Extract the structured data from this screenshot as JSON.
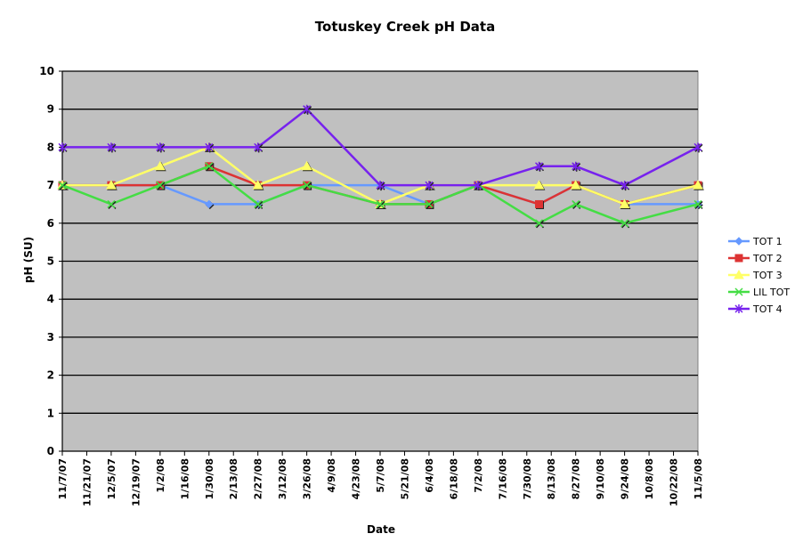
{
  "chart_data": {
    "type": "line",
    "title": "Totuskey Creek pH Data",
    "xlabel": "Date",
    "ylabel": "pH (SU)",
    "ylim": [
      0,
      10
    ],
    "yticks": [
      0,
      1,
      2,
      3,
      4,
      5,
      6,
      7,
      8,
      9,
      10
    ],
    "grid": "horizontal",
    "plot_background": "#c0c0c0",
    "legend_position": "right",
    "x_tick_labels": [
      "11/7/07",
      "11/21/07",
      "12/5/07",
      "12/19/07",
      "1/2/08",
      "1/16/08",
      "1/30/08",
      "2/13/08",
      "2/27/08",
      "3/12/08",
      "3/26/08",
      "4/9/08",
      "4/23/08",
      "5/7/08",
      "5/21/08",
      "6/4/08",
      "6/18/08",
      "7/2/08",
      "7/16/08",
      "7/30/08",
      "8/13/08",
      "8/27/08",
      "9/10/08",
      "9/24/08",
      "10/8/08",
      "10/22/08",
      "11/5/08"
    ],
    "x_dates": [
      "11/7/07",
      "12/5/07",
      "1/2/08",
      "1/30/08",
      "2/27/08",
      "3/26/08",
      "5/7/08",
      "6/4/08",
      "7/2/08",
      "8/6/08",
      "8/27/08",
      "9/24/08",
      "11/5/08"
    ],
    "series": [
      {
        "name": "TOT 1",
        "color": "#6699ff",
        "marker": "diamond",
        "values": [
          7,
          7,
          7,
          6.5,
          6.5,
          7,
          7,
          6.5,
          7,
          6.5,
          7,
          6.5,
          6.5
        ]
      },
      {
        "name": "TOT 2",
        "color": "#dd3333",
        "marker": "square",
        "values": [
          7,
          7,
          7,
          7.5,
          7,
          7,
          6.5,
          6.5,
          7,
          6.5,
          7,
          6.5,
          7
        ]
      },
      {
        "name": "TOT 3",
        "color": "#ffff66",
        "marker": "triangle",
        "values": [
          7,
          7,
          7.5,
          8,
          7,
          7.5,
          6.5,
          7,
          7,
          7,
          7,
          6.5,
          7
        ]
      },
      {
        "name": "LIL TOT",
        "color": "#44dd44",
        "marker": "x",
        "values": [
          7,
          6.5,
          7,
          7.5,
          6.5,
          7,
          6.5,
          6.5,
          7,
          6,
          6.5,
          6,
          6.5
        ]
      },
      {
        "name": "TOT 4",
        "color": "#7722ee",
        "marker": "star",
        "values": [
          8,
          8,
          8,
          8,
          8,
          9,
          7,
          7,
          7,
          7.5,
          7.5,
          7,
          8
        ]
      }
    ]
  }
}
